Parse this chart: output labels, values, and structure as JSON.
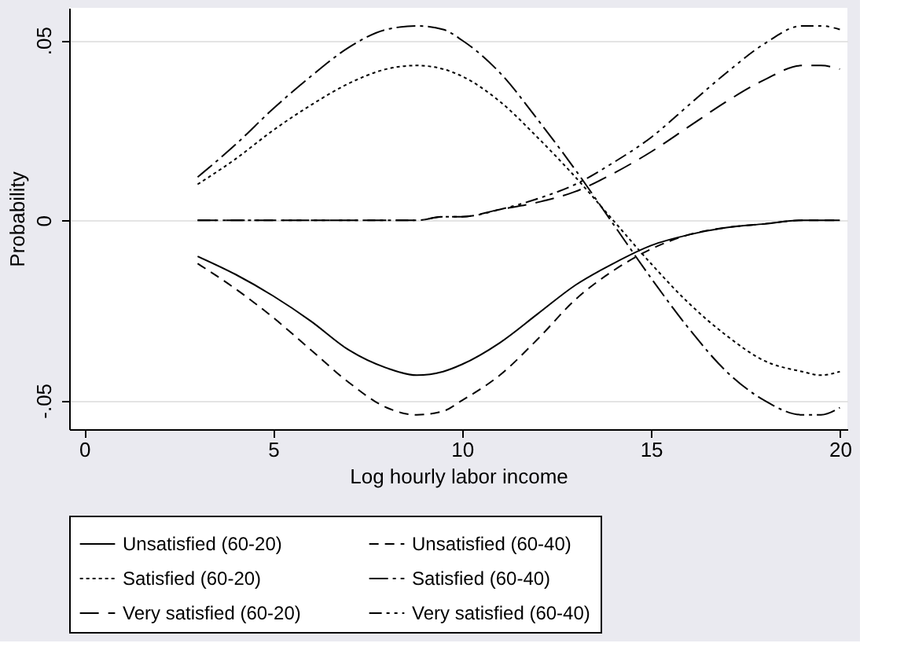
{
  "chart_data": {
    "type": "line",
    "xlabel": "Log hourly labor income",
    "ylabel": "Probability",
    "x": [
      3,
      4,
      5,
      6,
      7,
      8,
      8.8,
      9.5,
      10,
      11,
      12,
      13,
      14,
      15,
      16,
      17,
      18,
      19,
      19.5,
      20
    ],
    "series": [
      {
        "name": "Unsatisfied (60-20)",
        "color": "#000000",
        "line_style": "solid",
        "values": [
          -0.01,
          -0.015,
          -0.021,
          -0.028,
          -0.036,
          -0.041,
          -0.043,
          -0.042,
          -0.04,
          -0.034,
          -0.026,
          -0.018,
          -0.012,
          -0.007,
          -0.004,
          -0.002,
          -0.001,
          0.0,
          0.0,
          0.0
        ]
      },
      {
        "name": "Unsatisfied (60-40)",
        "color": "#000000",
        "line_style": "dashed",
        "values": [
          -0.012,
          -0.019,
          -0.027,
          -0.036,
          -0.045,
          -0.052,
          -0.054,
          -0.053,
          -0.05,
          -0.043,
          -0.033,
          -0.022,
          -0.014,
          -0.008,
          -0.004,
          -0.002,
          -0.001,
          0.0,
          0.0,
          0.0
        ]
      },
      {
        "name": "Satisfied (60-20)",
        "color": "#000000",
        "line_style": "dotted",
        "values": [
          0.01,
          0.017,
          0.025,
          0.032,
          0.038,
          0.042,
          0.043,
          0.042,
          0.04,
          0.033,
          0.023,
          0.012,
          0.0,
          -0.012,
          -0.023,
          -0.032,
          -0.039,
          -0.042,
          -0.043,
          -0.042
        ]
      },
      {
        "name": "Satisfied (60-40)",
        "color": "#000000",
        "line_style": "dashdot",
        "values": [
          0.012,
          0.021,
          0.031,
          0.04,
          0.048,
          0.053,
          0.054,
          0.053,
          0.05,
          0.041,
          0.028,
          0.014,
          -0.001,
          -0.016,
          -0.03,
          -0.042,
          -0.05,
          -0.054,
          -0.054,
          -0.052
        ]
      },
      {
        "name": "Very satisfied (60-20)",
        "color": "#000000",
        "line_style": "longdash",
        "values": [
          0.0,
          0.0,
          0.0,
          0.0,
          0.0,
          0.0,
          0.0,
          0.001,
          0.001,
          0.003,
          0.005,
          0.008,
          0.013,
          0.019,
          0.026,
          0.033,
          0.039,
          0.043,
          0.043,
          0.042
        ]
      },
      {
        "name": "Very satisfied (60-40)",
        "color": "#000000",
        "line_style": "dashdotdot",
        "values": [
          0.0,
          0.0,
          0.0,
          0.0,
          0.0,
          0.0,
          0.0,
          0.001,
          0.001,
          0.003,
          0.006,
          0.01,
          0.016,
          0.023,
          0.032,
          0.041,
          0.049,
          0.054,
          0.054,
          0.053
        ]
      }
    ],
    "xlim": [
      -0.4,
      20.2
    ],
    "xticks": [
      0,
      5,
      10,
      15,
      20
    ],
    "ylim": [
      -0.058,
      0.059
    ],
    "yticks": [
      {
        "value": 0.05,
        "label": ".05"
      },
      0,
      {
        "value": -0.05,
        "label": "-.05"
      }
    ],
    "grid": "y",
    "legend": "bottom"
  }
}
